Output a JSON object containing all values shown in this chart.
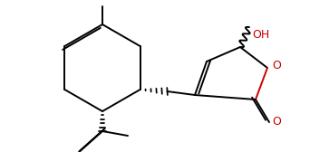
{
  "bg_color": "#ffffff",
  "bond_color": "#000000",
  "o_color": "#cc0000",
  "lw": 1.4,
  "fig_width": 3.63,
  "fig_height": 1.68,
  "xlim": [
    0,
    363
  ],
  "ylim": [
    0,
    168
  ]
}
